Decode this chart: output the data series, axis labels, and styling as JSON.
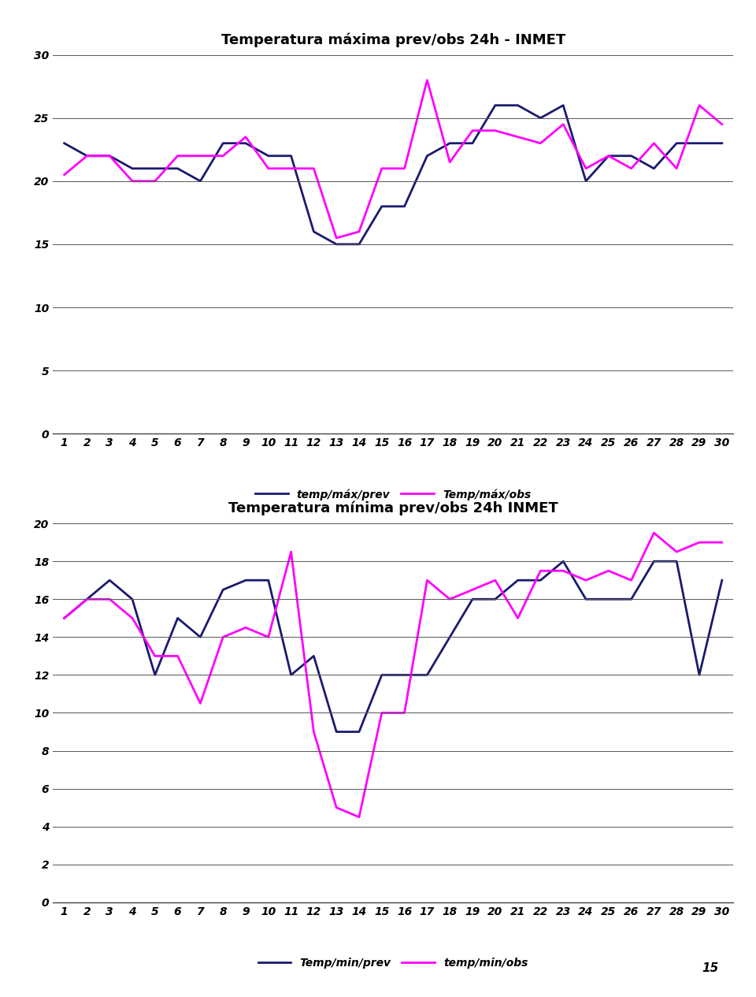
{
  "title1": "Temperatura máxima prev/obs 24h - INMET",
  "title2": "Temperatura mínima prev/obs 24h INMET",
  "x": [
    1,
    2,
    3,
    4,
    5,
    6,
    7,
    8,
    9,
    10,
    11,
    12,
    13,
    14,
    15,
    16,
    17,
    18,
    19,
    20,
    21,
    22,
    23,
    24,
    25,
    26,
    27,
    28,
    29,
    30
  ],
  "max_prev": [
    23,
    22,
    22,
    21,
    21,
    21,
    20,
    23,
    23,
    22,
    22,
    16,
    15,
    15,
    18,
    18,
    22,
    23,
    23,
    26,
    26,
    25,
    26,
    20,
    22,
    22,
    21,
    23,
    23,
    23
  ],
  "max_obs": [
    20.5,
    22,
    22,
    20,
    20,
    22,
    22,
    22,
    23.5,
    21,
    21,
    21,
    15.5,
    16,
    21,
    21,
    28,
    21.5,
    24,
    24,
    23.5,
    23,
    24.5,
    21,
    22,
    21,
    23,
    21,
    26,
    24.5
  ],
  "min_prev": [
    15,
    16,
    17,
    16,
    12,
    15,
    14,
    16.5,
    17,
    17,
    12,
    13,
    9,
    9,
    12,
    12,
    12,
    14,
    16,
    16,
    17,
    17,
    18,
    16,
    16,
    16,
    18,
    18,
    12,
    17
  ],
  "min_obs": [
    15,
    16,
    16,
    15,
    13,
    13,
    10.5,
    14,
    14.5,
    14,
    18.5,
    9,
    5,
    4.5,
    10,
    10,
    17,
    16,
    16.5,
    17,
    15,
    17.5,
    17.5,
    17,
    17.5,
    17,
    19.5,
    18.5,
    19,
    19
  ],
  "color_prev": "#1a1a6e",
  "color_obs": "#ff00ff",
  "legend1_label1": "temp/máx/prev",
  "legend1_label2": "Temp/máx/obs",
  "legend2_label1": "Temp/min/prev",
  "legend2_label2": "temp/min/obs",
  "max_ylim": [
    0,
    30
  ],
  "max_yticks": [
    0,
    5,
    10,
    15,
    20,
    25,
    30
  ],
  "min_ylim": [
    0,
    20
  ],
  "min_yticks": [
    0,
    2,
    4,
    6,
    8,
    10,
    12,
    14,
    16,
    18,
    20
  ],
  "page_number": "15",
  "bg_color": "#ffffff",
  "grid_color": "#555555",
  "line_width": 2.0,
  "tick_fontsize": 10,
  "title_fontsize": 13,
  "legend_fontsize": 10
}
